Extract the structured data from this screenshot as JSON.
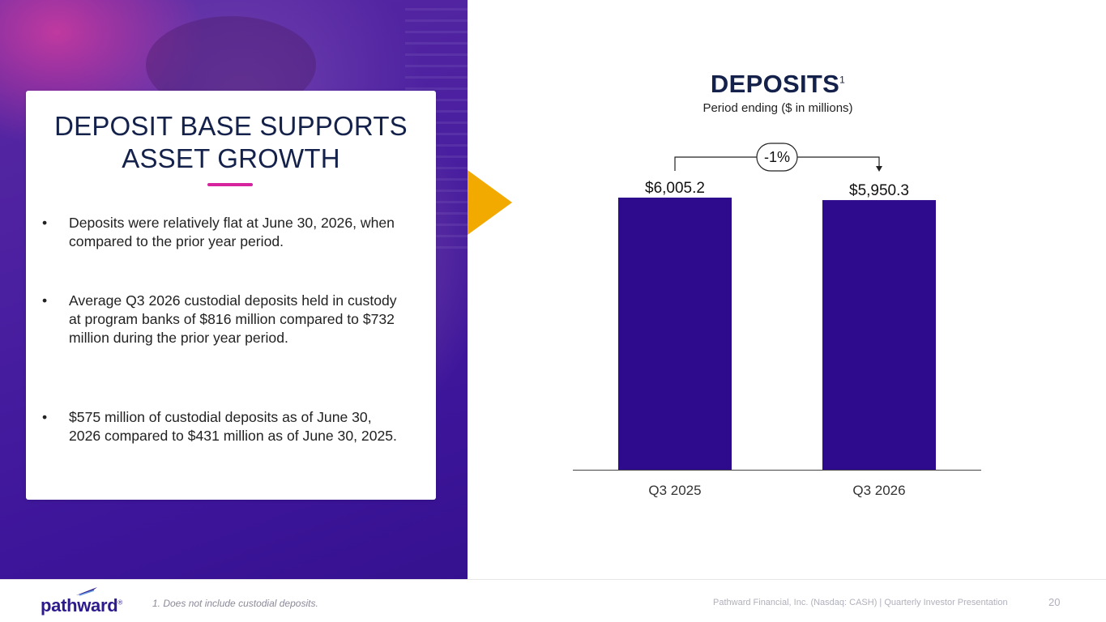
{
  "card": {
    "title_line1": "DEPOSIT BASE SUPPORTS",
    "title_line2": "ASSET GROWTH",
    "bullets": [
      "Deposits were relatively flat at June 30, 2026, when compared to the prior year period.",
      "Average Q3 2026 custodial deposits held in custody at program banks of $816 million compared to $732 million during the prior year period.",
      "$575 million of custodial deposits as of June 30, 2026 compared to $431 million as of June 30, 2025."
    ],
    "bullet_symbol": "•"
  },
  "chart_data": {
    "type": "bar",
    "title": "DEPOSITS",
    "title_footnote": "1",
    "subtitle": "Period ending ($ in millions)",
    "categories": [
      "Q3 2025",
      "Q3 2026"
    ],
    "values": [
      6005.2,
      5950.3
    ],
    "value_labels": [
      "$6,005.2",
      "$5,950.3"
    ],
    "change_label": "-1%",
    "ylim": [
      0,
      6005.2
    ],
    "bar_color": "#2e0a8c",
    "grid": false
  },
  "footer": {
    "logo_text": "pathward",
    "logo_reg": "®",
    "footnote": "1. Does not include custodial deposits.",
    "company": "Pathward Financial, Inc. (Nasdaq: CASH) | Quarterly Investor Presentation",
    "page_number": "20"
  },
  "colors": {
    "navy": "#14214a",
    "accent_magenta": "#d6249f",
    "accent_gold": "#f2a900",
    "brand_purple": "#2d1b8e"
  }
}
